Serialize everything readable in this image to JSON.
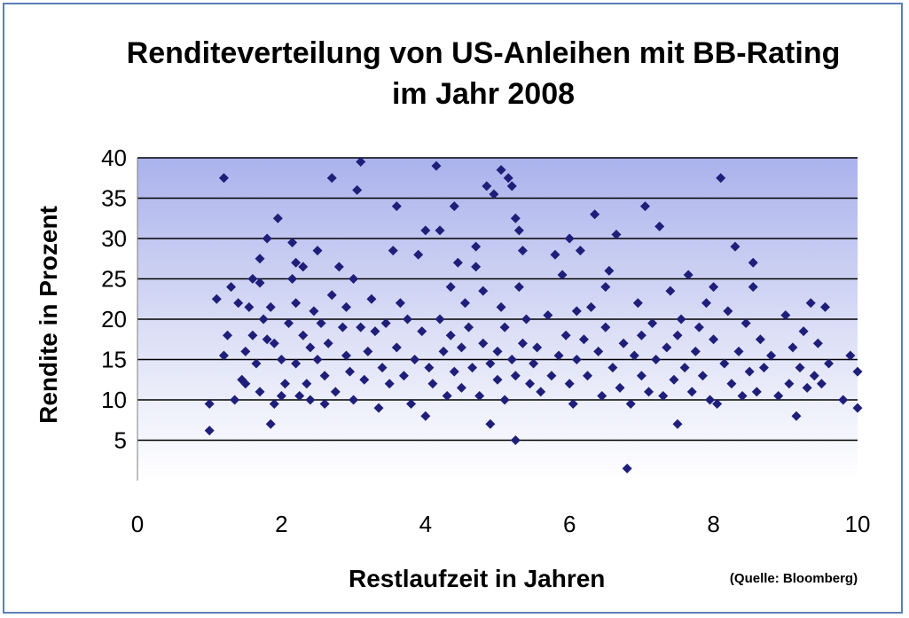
{
  "chart_data": {
    "type": "scatter",
    "title": [
      "Renditeverteilung von US-Anleihen mit BB-Rating",
      "im Jahr 2008"
    ],
    "xlabel": "Restlaufzeit in Jahren",
    "ylabel": "Rendite in Prozent",
    "source": "(Quelle: Bloomberg)",
    "xlim": [
      0,
      10
    ],
    "ylim": [
      0,
      40
    ],
    "x_ticks": [
      "0",
      "2",
      "4",
      "6",
      "8",
      "10"
    ],
    "y_ticks": [
      "5",
      "10",
      "15",
      "20",
      "25",
      "30",
      "35",
      "40"
    ],
    "grid": true,
    "legend": "none",
    "marker_color": "#1f1f7a",
    "series": [
      {
        "points": [
          [
            1.0,
            6.2
          ],
          [
            1.0,
            9.5
          ],
          [
            1.1,
            22.5
          ],
          [
            1.2,
            15.5
          ],
          [
            1.2,
            37.5
          ],
          [
            1.25,
            18.0
          ],
          [
            1.3,
            24.0
          ],
          [
            1.35,
            10.0
          ],
          [
            1.4,
            22.0
          ],
          [
            1.45,
            12.5
          ],
          [
            1.5,
            12.0
          ],
          [
            1.5,
            16.0
          ],
          [
            1.55,
            21.5
          ],
          [
            1.6,
            25.0
          ],
          [
            1.6,
            18.0
          ],
          [
            1.65,
            14.5
          ],
          [
            1.7,
            27.5
          ],
          [
            1.7,
            24.5
          ],
          [
            1.7,
            11.0
          ],
          [
            1.75,
            20.0
          ],
          [
            1.8,
            30.0
          ],
          [
            1.8,
            17.5
          ],
          [
            1.85,
            21.5
          ],
          [
            1.85,
            7.0
          ],
          [
            1.9,
            9.5
          ],
          [
            1.9,
            17.0
          ],
          [
            1.95,
            32.5
          ],
          [
            2.0,
            10.5
          ],
          [
            2.0,
            15.0
          ],
          [
            2.05,
            12.0
          ],
          [
            2.1,
            19.5
          ],
          [
            2.15,
            29.5
          ],
          [
            2.15,
            25.0
          ],
          [
            2.2,
            22.0
          ],
          [
            2.2,
            27.0
          ],
          [
            2.2,
            14.5
          ],
          [
            2.25,
            10.5
          ],
          [
            2.3,
            18.0
          ],
          [
            2.3,
            26.5
          ],
          [
            2.35,
            12.0
          ],
          [
            2.4,
            16.5
          ],
          [
            2.4,
            10.0
          ],
          [
            2.45,
            21.0
          ],
          [
            2.5,
            28.5
          ],
          [
            2.5,
            15.0
          ],
          [
            2.55,
            19.5
          ],
          [
            2.6,
            13.0
          ],
          [
            2.6,
            9.5
          ],
          [
            2.65,
            17.0
          ],
          [
            2.7,
            23.0
          ],
          [
            2.7,
            37.5
          ],
          [
            2.75,
            11.0
          ],
          [
            2.8,
            26.5
          ],
          [
            2.85,
            19.0
          ],
          [
            2.9,
            15.5
          ],
          [
            2.9,
            21.5
          ],
          [
            2.95,
            13.5
          ],
          [
            3.0,
            10.0
          ],
          [
            3.0,
            25.0
          ],
          [
            3.05,
            36.0
          ],
          [
            3.1,
            39.5
          ],
          [
            3.1,
            19.0
          ],
          [
            3.15,
            12.5
          ],
          [
            3.2,
            16.0
          ],
          [
            3.25,
            22.5
          ],
          [
            3.3,
            18.5
          ],
          [
            3.35,
            9.0
          ],
          [
            3.4,
            14.0
          ],
          [
            3.45,
            19.5
          ],
          [
            3.5,
            12.0
          ],
          [
            3.55,
            28.5
          ],
          [
            3.6,
            34.0
          ],
          [
            3.6,
            16.5
          ],
          [
            3.65,
            22.0
          ],
          [
            3.7,
            13.0
          ],
          [
            3.75,
            20.0
          ],
          [
            3.8,
            9.5
          ],
          [
            3.85,
            15.0
          ],
          [
            3.9,
            28.0
          ],
          [
            3.95,
            18.5
          ],
          [
            4.0,
            31.0
          ],
          [
            4.0,
            8.0
          ],
          [
            4.05,
            14.0
          ],
          [
            4.1,
            12.0
          ],
          [
            4.15,
            39.0
          ],
          [
            4.2,
            31.0
          ],
          [
            4.2,
            20.0
          ],
          [
            4.25,
            16.0
          ],
          [
            4.3,
            10.5
          ],
          [
            4.35,
            24.0
          ],
          [
            4.35,
            18.0
          ],
          [
            4.4,
            34.0
          ],
          [
            4.4,
            13.5
          ],
          [
            4.45,
            27.0
          ],
          [
            4.5,
            16.5
          ],
          [
            4.5,
            11.5
          ],
          [
            4.55,
            22.0
          ],
          [
            4.6,
            19.0
          ],
          [
            4.65,
            14.0
          ],
          [
            4.7,
            29.0
          ],
          [
            4.7,
            26.5
          ],
          [
            4.75,
            10.5
          ],
          [
            4.8,
            23.5
          ],
          [
            4.8,
            17.0
          ],
          [
            4.85,
            36.5
          ],
          [
            4.9,
            14.5
          ],
          [
            4.9,
            7.0
          ],
          [
            4.95,
            35.5
          ],
          [
            5.0,
            16.0
          ],
          [
            5.0,
            12.5
          ],
          [
            5.05,
            38.5
          ],
          [
            5.05,
            21.5
          ],
          [
            5.1,
            19.0
          ],
          [
            5.1,
            10.0
          ],
          [
            5.15,
            37.5
          ],
          [
            5.2,
            15.0
          ],
          [
            5.2,
            36.5
          ],
          [
            5.25,
            13.0
          ],
          [
            5.25,
            32.5
          ],
          [
            5.25,
            5.0
          ],
          [
            5.3,
            31.0
          ],
          [
            5.3,
            24.0
          ],
          [
            5.35,
            17.0
          ],
          [
            5.35,
            28.5
          ],
          [
            5.4,
            20.0
          ],
          [
            5.45,
            12.0
          ],
          [
            5.5,
            14.5
          ],
          [
            5.55,
            16.5
          ],
          [
            5.6,
            11.0
          ],
          [
            5.7,
            20.5
          ],
          [
            5.75,
            13.0
          ],
          [
            5.8,
            28.0
          ],
          [
            5.85,
            15.5
          ],
          [
            5.9,
            25.5
          ],
          [
            5.95,
            18.0
          ],
          [
            6.0,
            30.0
          ],
          [
            6.0,
            12.0
          ],
          [
            6.05,
            9.5
          ],
          [
            6.1,
            21.0
          ],
          [
            6.1,
            15.0
          ],
          [
            6.15,
            28.5
          ],
          [
            6.2,
            17.5
          ],
          [
            6.25,
            13.0
          ],
          [
            6.3,
            21.5
          ],
          [
            6.35,
            33.0
          ],
          [
            6.4,
            16.0
          ],
          [
            6.45,
            10.5
          ],
          [
            6.5,
            24.0
          ],
          [
            6.5,
            19.0
          ],
          [
            6.55,
            26.0
          ],
          [
            6.6,
            14.0
          ],
          [
            6.65,
            30.5
          ],
          [
            6.7,
            11.5
          ],
          [
            6.75,
            17.0
          ],
          [
            6.8,
            1.5
          ],
          [
            6.85,
            9.5
          ],
          [
            6.9,
            15.5
          ],
          [
            6.95,
            22.0
          ],
          [
            7.0,
            13.0
          ],
          [
            7.0,
            18.0
          ],
          [
            7.05,
            34.0
          ],
          [
            7.1,
            11.0
          ],
          [
            7.15,
            19.5
          ],
          [
            7.2,
            15.0
          ],
          [
            7.25,
            31.5
          ],
          [
            7.3,
            10.5
          ],
          [
            7.35,
            16.5
          ],
          [
            7.4,
            23.5
          ],
          [
            7.45,
            12.5
          ],
          [
            7.5,
            7.0
          ],
          [
            7.5,
            18.0
          ],
          [
            7.55,
            20.0
          ],
          [
            7.6,
            14.0
          ],
          [
            7.65,
            25.5
          ],
          [
            7.7,
            11.0
          ],
          [
            7.75,
            16.0
          ],
          [
            7.8,
            19.0
          ],
          [
            7.85,
            13.0
          ],
          [
            7.9,
            22.0
          ],
          [
            7.95,
            10.0
          ],
          [
            8.0,
            17.5
          ],
          [
            8.0,
            24.0
          ],
          [
            8.05,
            9.5
          ],
          [
            8.1,
            37.5
          ],
          [
            8.15,
            14.5
          ],
          [
            8.2,
            21.0
          ],
          [
            8.25,
            12.0
          ],
          [
            8.3,
            29.0
          ],
          [
            8.35,
            16.0
          ],
          [
            8.4,
            10.5
          ],
          [
            8.45,
            19.5
          ],
          [
            8.5,
            13.5
          ],
          [
            8.55,
            24.0
          ],
          [
            8.55,
            27.0
          ],
          [
            8.6,
            11.0
          ],
          [
            8.65,
            17.5
          ],
          [
            8.7,
            14.0
          ],
          [
            8.8,
            15.5
          ],
          [
            8.9,
            10.5
          ],
          [
            9.0,
            20.5
          ],
          [
            9.05,
            12.0
          ],
          [
            9.1,
            16.5
          ],
          [
            9.15,
            8.0
          ],
          [
            9.2,
            14.0
          ],
          [
            9.25,
            18.5
          ],
          [
            9.3,
            11.5
          ],
          [
            9.35,
            22.0
          ],
          [
            9.4,
            13.0
          ],
          [
            9.45,
            17.0
          ],
          [
            9.5,
            12.0
          ],
          [
            9.55,
            21.5
          ],
          [
            9.6,
            14.5
          ],
          [
            9.8,
            10.0
          ],
          [
            9.9,
            15.5
          ],
          [
            10.0,
            13.5
          ],
          [
            10.0,
            9.0
          ]
        ]
      }
    ]
  }
}
